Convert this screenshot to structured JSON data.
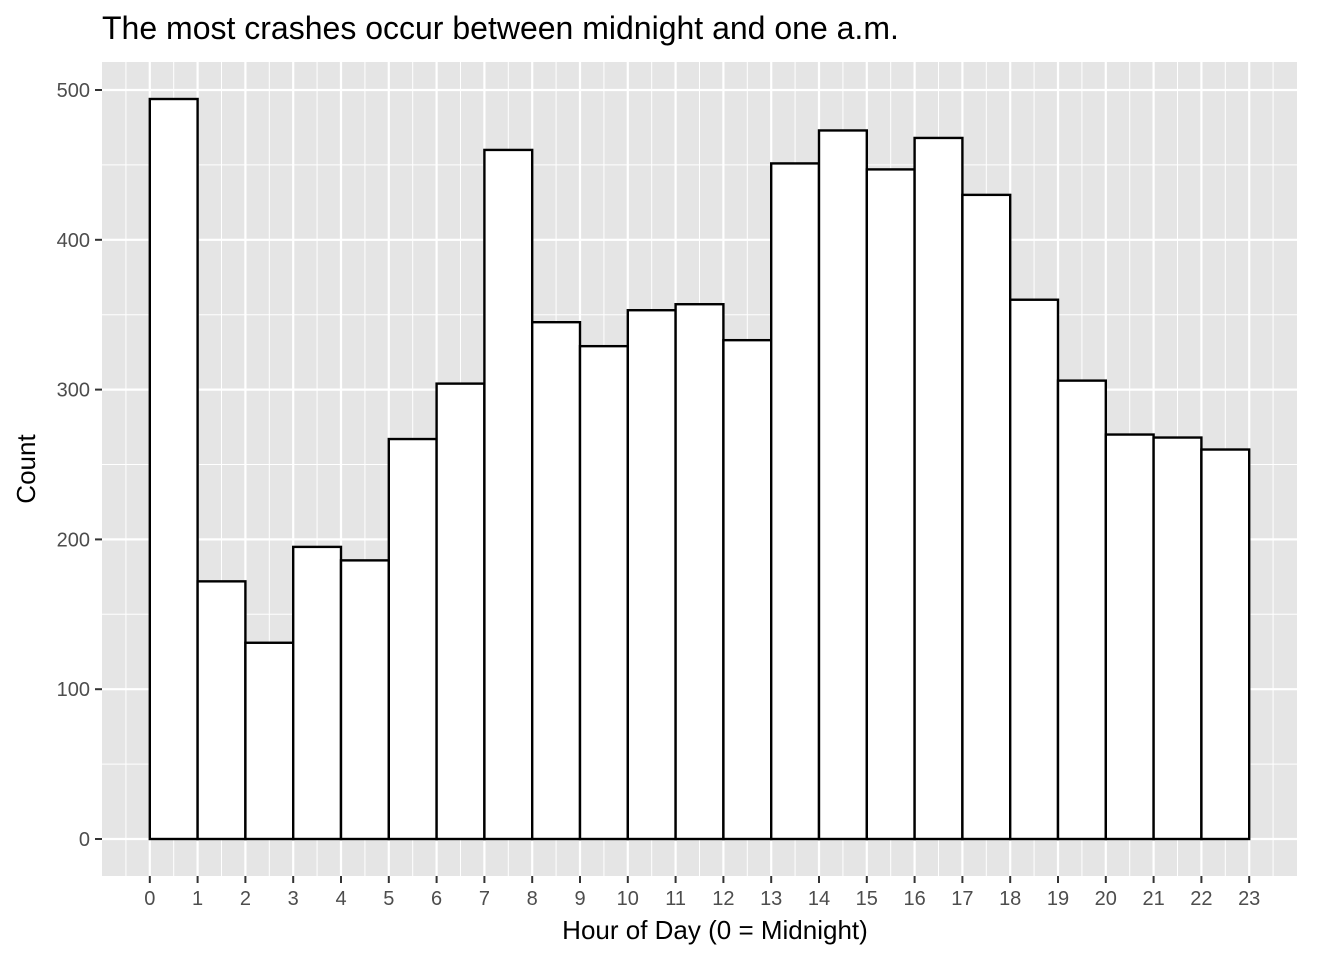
{
  "chart_data": {
    "type": "bar",
    "title": "The most crashes occur between midnight and one a.m.",
    "xlabel": "Hour of Day (0 = Midnight)",
    "ylabel": "Count",
    "x_ticks": [
      0,
      1,
      2,
      3,
      4,
      5,
      6,
      7,
      8,
      9,
      10,
      11,
      12,
      13,
      14,
      15,
      16,
      17,
      18,
      19,
      20,
      21,
      22,
      23
    ],
    "y_ticks": [
      0,
      100,
      200,
      300,
      400,
      500
    ],
    "bins": [
      {
        "start": 0,
        "end": 1,
        "value": 494
      },
      {
        "start": 1,
        "end": 2,
        "value": 172
      },
      {
        "start": 2,
        "end": 3,
        "value": 131
      },
      {
        "start": 3,
        "end": 4,
        "value": 195
      },
      {
        "start": 4,
        "end": 5,
        "value": 186
      },
      {
        "start": 5,
        "end": 6,
        "value": 267
      },
      {
        "start": 6,
        "end": 7,
        "value": 304
      },
      {
        "start": 7,
        "end": 8,
        "value": 460
      },
      {
        "start": 8,
        "end": 9,
        "value": 345
      },
      {
        "start": 9,
        "end": 10,
        "value": 329
      },
      {
        "start": 10,
        "end": 11,
        "value": 353
      },
      {
        "start": 11,
        "end": 12,
        "value": 357
      },
      {
        "start": 12,
        "end": 13,
        "value": 333
      },
      {
        "start": 13,
        "end": 14,
        "value": 451
      },
      {
        "start": 14,
        "end": 15,
        "value": 473
      },
      {
        "start": 15,
        "end": 16,
        "value": 447
      },
      {
        "start": 16,
        "end": 17,
        "value": 468
      },
      {
        "start": 17,
        "end": 18,
        "value": 430
      },
      {
        "start": 18,
        "end": 19,
        "value": 360
      },
      {
        "start": 19,
        "end": 20,
        "value": 306
      },
      {
        "start": 20,
        "end": 21,
        "value": 270
      },
      {
        "start": 21,
        "end": 22,
        "value": 268
      },
      {
        "start": 22,
        "end": 23,
        "value": 260
      }
    ],
    "xlim": [
      -1.0,
      24.0
    ],
    "ylim": [
      -24.7,
      518.7
    ],
    "grid": true,
    "panel_color": "#e5e5e5",
    "grid_color": "#ffffff",
    "bar_fill": "#ffffff",
    "bar_stroke": "#000000"
  }
}
